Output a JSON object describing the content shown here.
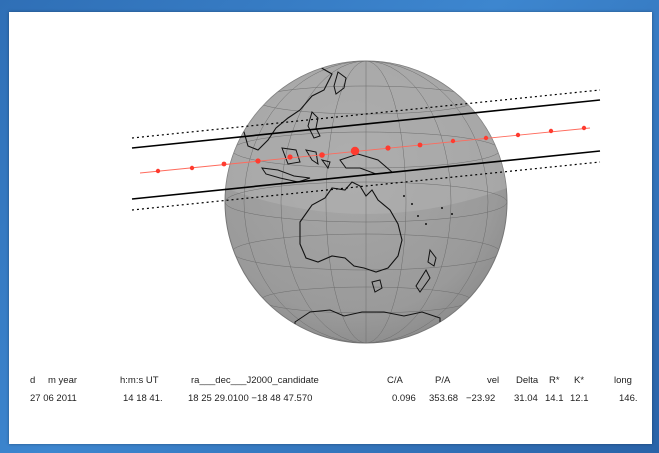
{
  "header_cells": [
    "d",
    "m year",
    "h:m:s UT",
    "ra___dec___J2000_candidate",
    "C/A",
    "P/A",
    "vel",
    "Delta",
    "R*",
    "K*",
    "long"
  ],
  "value_cells": [
    "27 06 2011",
    "14 18 41.",
    "18 25 29.0100 −18 48  47.570",
    "0.096",
    "353.68",
    "−23.92",
    "31.04",
    "14.1",
    "12.1",
    "146."
  ],
  "colors": {
    "globe": "#9a9a9a",
    "globe_rim": "#bdbdbd",
    "coast": "#111111",
    "track": "#ff3b2f",
    "shadow_band": "#000000"
  }
}
